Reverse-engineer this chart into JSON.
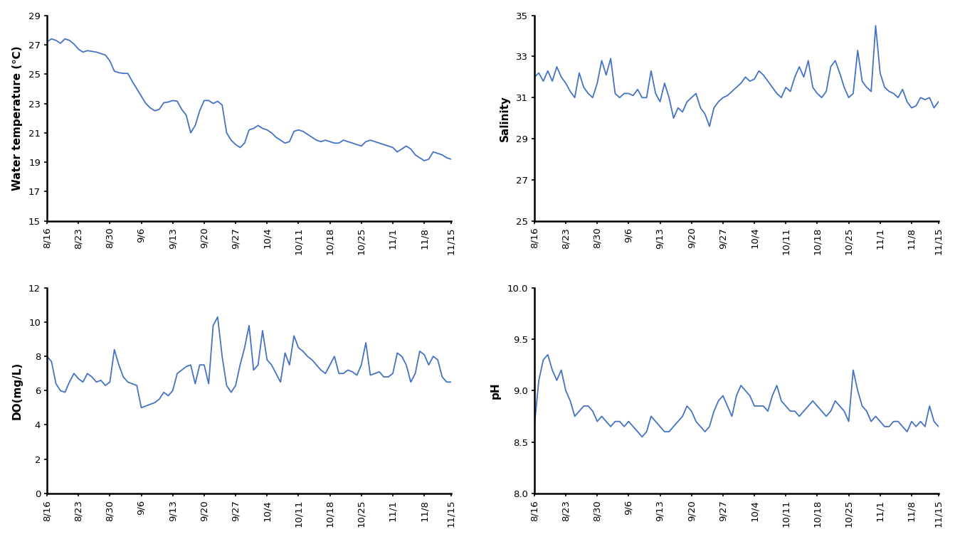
{
  "line_color": "#4472C4",
  "line_width": 1.3,
  "bg_color": "#FFFFFF",
  "tick_label_fontsize": 9.5,
  "axis_label_fontsize": 11,
  "temp_ylabel": "Water temperature (℃)",
  "temp_ylim": [
    15,
    29
  ],
  "temp_yticks": [
    15,
    17,
    19,
    21,
    23,
    25,
    27,
    29
  ],
  "temp_data": [
    27.2,
    27.4,
    27.3,
    27.1,
    27.4,
    27.3,
    27.05,
    26.7,
    26.5,
    26.6,
    26.55,
    26.5,
    26.4,
    26.3,
    25.9,
    25.2,
    25.1,
    25.05,
    25.05,
    24.5,
    24.0,
    23.5,
    23.0,
    22.7,
    22.5,
    22.6,
    23.05,
    23.1,
    23.2,
    23.15,
    22.6,
    22.2,
    21.0,
    21.5,
    22.5,
    23.2,
    23.2,
    23.0,
    23.15,
    22.9,
    21.0,
    20.5,
    20.2,
    20.0,
    20.3,
    21.2,
    21.3,
    21.5,
    21.3,
    21.2,
    21.0,
    20.7,
    20.5,
    20.3,
    20.4,
    21.1,
    21.2,
    21.1,
    20.9,
    20.7,
    20.5,
    20.4,
    20.5,
    20.4,
    20.3,
    20.3,
    20.5,
    20.4,
    20.3,
    20.2,
    20.1,
    20.4,
    20.5,
    20.4,
    20.3,
    20.2,
    20.1,
    20.0,
    19.7,
    19.9,
    20.1,
    19.9,
    19.5,
    19.3,
    19.1,
    19.2,
    19.7,
    19.6,
    19.5,
    19.3,
    19.2
  ],
  "sal_ylabel": "Salinity",
  "sal_ylim": [
    25,
    35
  ],
  "sal_yticks": [
    25,
    27,
    29,
    31,
    33,
    35
  ],
  "sal_data": [
    32.0,
    32.2,
    31.8,
    32.3,
    31.8,
    32.5,
    32.0,
    31.7,
    31.3,
    31.0,
    32.2,
    31.5,
    31.2,
    31.0,
    31.7,
    32.8,
    32.1,
    32.9,
    31.2,
    31.0,
    31.2,
    31.2,
    31.1,
    31.4,
    31.0,
    31.0,
    32.3,
    31.2,
    30.8,
    31.7,
    31.0,
    30.0,
    30.5,
    30.3,
    30.8,
    31.0,
    31.2,
    30.5,
    30.2,
    29.6,
    30.5,
    30.8,
    31.0,
    31.1,
    31.3,
    31.5,
    31.7,
    32.0,
    31.8,
    31.9,
    32.3,
    32.1,
    31.8,
    31.5,
    31.2,
    31.0,
    31.5,
    31.3,
    32.0,
    32.5,
    32.0,
    32.8,
    31.5,
    31.2,
    31.0,
    31.3,
    32.5,
    32.8,
    32.2,
    31.5,
    31.0,
    31.2,
    33.3,
    31.8,
    31.5,
    31.3,
    34.5,
    32.2,
    31.5,
    31.3,
    31.2,
    31.0,
    31.4,
    30.8,
    30.5,
    30.6,
    31.0,
    30.9,
    31.0,
    30.5,
    30.8
  ],
  "do_ylabel": "DO(mg/L)",
  "do_ylim": [
    0,
    12
  ],
  "do_yticks": [
    0,
    2,
    4,
    6,
    8,
    10,
    12
  ],
  "do_data": [
    8.0,
    7.7,
    6.4,
    6.0,
    5.9,
    6.5,
    7.0,
    6.7,
    6.5,
    7.0,
    6.8,
    6.5,
    6.6,
    6.3,
    6.5,
    8.4,
    7.5,
    6.8,
    6.5,
    6.4,
    6.3,
    5.0,
    5.1,
    5.2,
    5.3,
    5.5,
    5.9,
    5.7,
    6.0,
    7.0,
    7.2,
    7.4,
    7.5,
    6.4,
    7.5,
    7.5,
    6.4,
    9.8,
    10.3,
    8.0,
    6.3,
    5.9,
    6.3,
    7.5,
    8.5,
    9.8,
    7.2,
    7.5,
    9.5,
    7.8,
    7.5,
    7.0,
    6.5,
    8.2,
    7.5,
    9.2,
    8.5,
    8.3,
    8.0,
    7.8,
    7.5,
    7.2,
    7.0,
    7.5,
    8.0,
    7.0,
    7.0,
    7.2,
    7.1,
    6.9,
    7.5,
    8.8,
    6.9,
    7.0,
    7.1,
    6.8,
    6.8,
    7.0,
    8.2,
    8.0,
    7.5,
    6.5,
    7.0,
    8.3,
    8.1,
    7.5,
    8.0,
    7.8,
    6.8,
    6.5,
    6.5
  ],
  "ph_ylabel": "pH",
  "ph_ylim": [
    8,
    10
  ],
  "ph_yticks": [
    8,
    8.5,
    9,
    9.5,
    10
  ],
  "ph_data": [
    8.65,
    9.1,
    9.3,
    9.35,
    9.2,
    9.1,
    9.2,
    9.0,
    8.9,
    8.75,
    8.8,
    8.85,
    8.85,
    8.8,
    8.7,
    8.75,
    8.7,
    8.65,
    8.7,
    8.7,
    8.65,
    8.7,
    8.65,
    8.6,
    8.55,
    8.6,
    8.75,
    8.7,
    8.65,
    8.6,
    8.6,
    8.65,
    8.7,
    8.75,
    8.85,
    8.8,
    8.7,
    8.65,
    8.6,
    8.65,
    8.8,
    8.9,
    8.95,
    8.85,
    8.75,
    8.95,
    9.05,
    9.0,
    8.95,
    8.85,
    8.85,
    8.85,
    8.8,
    8.95,
    9.05,
    8.9,
    8.85,
    8.8,
    8.8,
    8.75,
    8.8,
    8.85,
    8.9,
    8.85,
    8.8,
    8.75,
    8.8,
    8.9,
    8.85,
    8.8,
    8.7,
    9.2,
    9.0,
    8.85,
    8.8,
    8.7,
    8.75,
    8.7,
    8.65,
    8.65,
    8.7,
    8.7,
    8.65,
    8.6,
    8.7,
    8.65,
    8.7,
    8.65,
    8.85,
    8.7,
    8.65
  ],
  "xticklabels": [
    "8/16",
    "8/23",
    "8/30",
    "9/6",
    "9/13",
    "9/20",
    "9/27",
    "10/4",
    "10/11",
    "10/18",
    "10/25",
    "11/1",
    "11/8",
    "11/15"
  ]
}
